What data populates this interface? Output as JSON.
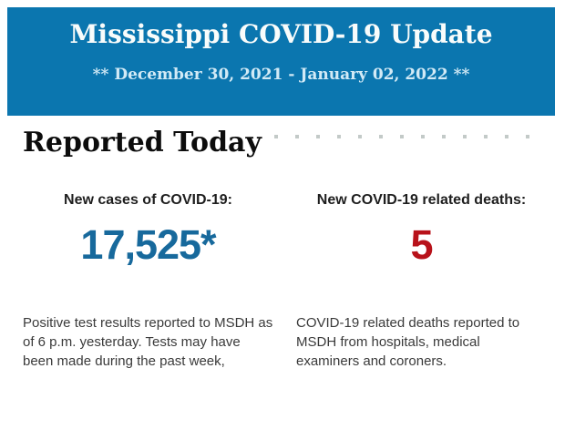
{
  "colors": {
    "banner_background": "#0b76af",
    "banner_title": "#f9fcfb",
    "banner_subtitle": "#d2eaf6",
    "cases_value": "#17699c",
    "deaths_value": "#b8121a"
  },
  "banner": {
    "title": "Mississippi COVID-19 Update",
    "subtitle": "** December 30, 2021 - January 02, 2022 **"
  },
  "section": {
    "heading": "Reported Today"
  },
  "stats": [
    {
      "label": "New cases of COVID-19:",
      "value": "17,525*",
      "description": "Positive test results reported to MSDH as of 6 p.m. yesterday. Tests may have been made during the past week,"
    },
    {
      "label": "New COVID-19 related deaths:",
      "value": "5",
      "description": "COVID-19 related deaths reported to MSDH from hospitals, medical examiners and coroners."
    }
  ]
}
